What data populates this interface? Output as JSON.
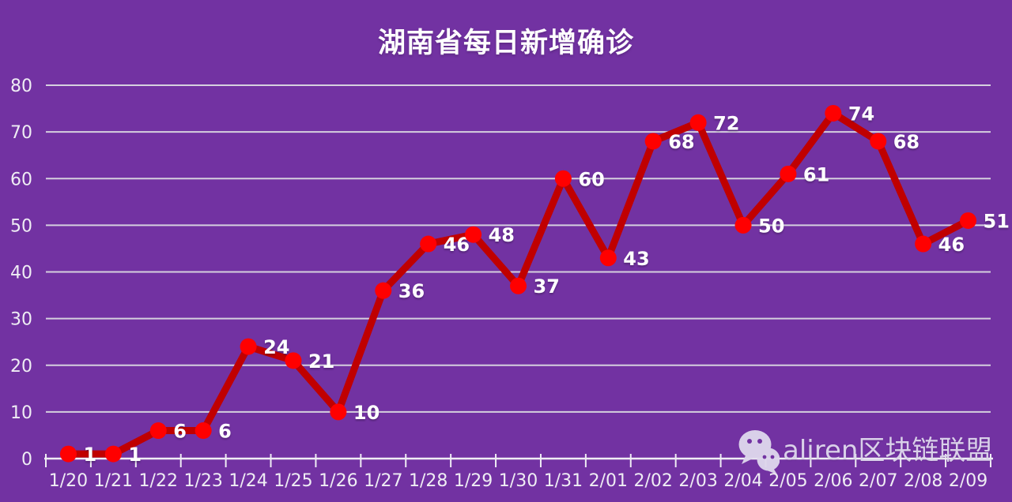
{
  "title": "湖南省每日新增确诊",
  "watermark": {
    "icon": "wechat-icon",
    "text": "aliren区块链联盟"
  },
  "colors": {
    "background": "#7232a2",
    "line": "#c00000",
    "marker": "#ff0000",
    "gridline": "#d5d0de",
    "axis": "#efedf4",
    "label": "#ffffff",
    "watermark": "#ded7ec"
  },
  "chart_data": {
    "type": "line",
    "title": "湖南省每日新增确诊",
    "categories": [
      "1/20",
      "1/21",
      "1/22",
      "1/23",
      "1/24",
      "1/25",
      "1/26",
      "1/27",
      "1/28",
      "1/29",
      "1/30",
      "1/31",
      "2/01",
      "2/02",
      "2/03",
      "2/04",
      "2/05",
      "2/06",
      "2/07",
      "2/08",
      "2/09"
    ],
    "values": [
      1,
      1,
      6,
      6,
      24,
      21,
      10,
      36,
      46,
      48,
      37,
      60,
      43,
      68,
      72,
      50,
      61,
      74,
      68,
      46,
      51
    ],
    "yticks": [
      0,
      10,
      20,
      30,
      40,
      50,
      60,
      70,
      80
    ],
    "ylim": [
      0,
      80
    ],
    "xlabel": "",
    "ylabel": "",
    "grid": true,
    "legend_position": "none",
    "data_labels": "right"
  }
}
